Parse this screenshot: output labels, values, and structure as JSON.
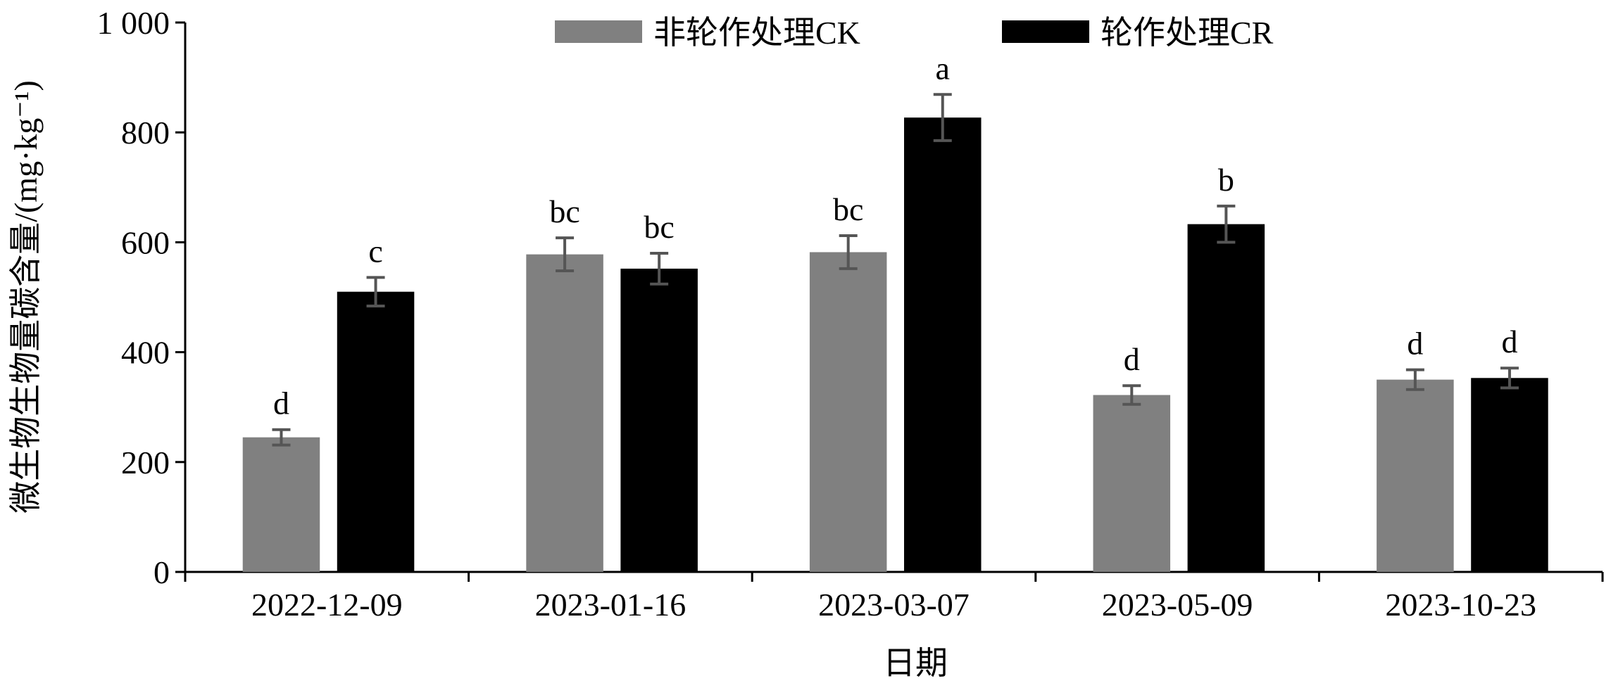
{
  "chart_data": {
    "type": "bar",
    "xlabel": "日期",
    "ylabel": "微生物生物量碳含量/(mg·kg⁻¹)",
    "categories": [
      "2022-12-09",
      "2023-01-16",
      "2023-03-07",
      "2023-05-09",
      "2023-10-23"
    ],
    "series": [
      {
        "name": "非轮作处理CK",
        "color": "#808080",
        "values": [
          245,
          578,
          582,
          322,
          350
        ],
        "errors": [
          14,
          30,
          30,
          17,
          18
        ],
        "significance": [
          "d",
          "bc",
          "bc",
          "d",
          "d"
        ]
      },
      {
        "name": "轮作处理CR",
        "color": "#000000",
        "values": [
          510,
          552,
          827,
          633,
          353
        ],
        "errors": [
          26,
          28,
          42,
          33,
          18
        ],
        "significance": [
          "c",
          "bc",
          "a",
          "b",
          "d"
        ]
      }
    ],
    "ylim": [
      0,
      1000
    ],
    "yticks": [
      0,
      200,
      400,
      600,
      800,
      {
        "value": 1000,
        "label": "1 000"
      }
    ],
    "grid": false,
    "legend": "top"
  }
}
